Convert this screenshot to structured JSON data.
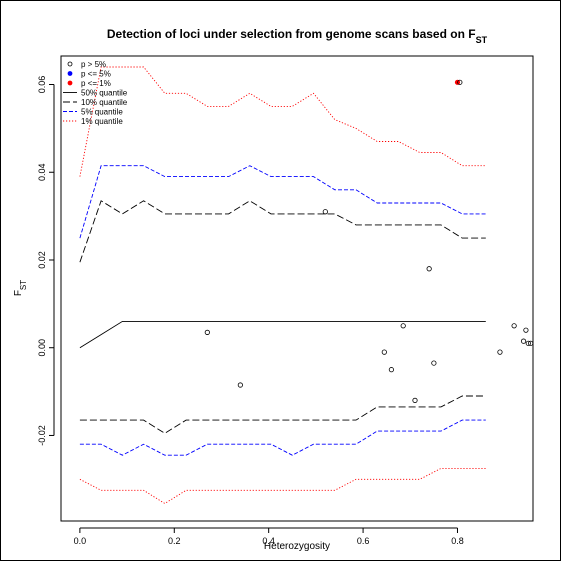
{
  "chart_data": {
    "type": "line",
    "title": "Detection of loci under selection from genome scans based on F",
    "title_sub": "ST",
    "xlabel": "Heterozygosity",
    "ylabel": "F",
    "ylabel_sub": "ST",
    "xlim": [
      -0.04,
      0.96
    ],
    "ylim": [
      -0.0395,
      0.0665
    ],
    "x_ticks": [
      0.0,
      0.2,
      0.4,
      0.6,
      0.8
    ],
    "x_tick_labels": [
      "0.0",
      "0.2",
      "0.4",
      "0.6",
      "0.8"
    ],
    "y_ticks": [
      -0.02,
      0.0,
      0.02,
      0.04,
      0.06
    ],
    "y_tick_labels": [
      "-0.02",
      "0.00",
      "0.02",
      "0.04",
      "0.06"
    ],
    "grid": false,
    "legend_position": "top-left",
    "legend": [
      {
        "label": "p > 5%",
        "kind": "point",
        "color": "#000000",
        "filled": false
      },
      {
        "label": "p <= 5%",
        "kind": "point",
        "color": "#0000ff",
        "filled": true
      },
      {
        "label": "p <= 1%",
        "kind": "point",
        "color": "#ff0000",
        "filled": true
      },
      {
        "label": "50% quantile",
        "kind": "line",
        "color": "#000000",
        "dash": "solid"
      },
      {
        "label": "10% quantile",
        "kind": "line",
        "color": "#000000",
        "dash": "longdash"
      },
      {
        "label": "5% quantile",
        "kind": "line",
        "color": "#0000ff",
        "dash": "dashed"
      },
      {
        "label": "1% quantile",
        "kind": "line",
        "color": "#ff0000",
        "dash": "dotted"
      }
    ],
    "series": [
      {
        "name": "1% quantile",
        "color": "#ff0000",
        "dash": "dotted",
        "x": [
          0.0,
          0.045,
          0.09,
          0.135,
          0.18,
          0.225,
          0.27,
          0.315,
          0.36,
          0.405,
          0.45,
          0.495,
          0.54,
          0.585,
          0.63,
          0.675,
          0.72,
          0.765,
          0.81,
          0.86
        ],
        "y": [
          0.039,
          0.064,
          0.064,
          0.064,
          0.058,
          0.058,
          0.055,
          0.055,
          0.058,
          0.055,
          0.055,
          0.058,
          0.052,
          0.05,
          0.047,
          0.047,
          0.0445,
          0.0445,
          0.0415,
          0.0415
        ]
      },
      {
        "name": "5% quantile",
        "color": "#0000ff",
        "dash": "dashed",
        "x": [
          0.0,
          0.045,
          0.09,
          0.135,
          0.18,
          0.225,
          0.27,
          0.315,
          0.36,
          0.405,
          0.45,
          0.495,
          0.54,
          0.585,
          0.63,
          0.675,
          0.72,
          0.765,
          0.81,
          0.86
        ],
        "y": [
          0.025,
          0.0415,
          0.0415,
          0.0415,
          0.039,
          0.039,
          0.039,
          0.039,
          0.0415,
          0.039,
          0.039,
          0.039,
          0.036,
          0.036,
          0.033,
          0.033,
          0.033,
          0.033,
          0.0305,
          0.0305
        ]
      },
      {
        "name": "10% quantile",
        "color": "#000000",
        "dash": "longdash",
        "x": [
          0.0,
          0.045,
          0.09,
          0.135,
          0.18,
          0.225,
          0.27,
          0.315,
          0.36,
          0.405,
          0.45,
          0.495,
          0.54,
          0.585,
          0.63,
          0.675,
          0.72,
          0.765,
          0.81,
          0.86
        ],
        "y": [
          0.0195,
          0.0335,
          0.0305,
          0.0335,
          0.0305,
          0.0305,
          0.0305,
          0.0305,
          0.0335,
          0.0305,
          0.0305,
          0.0305,
          0.0305,
          0.028,
          0.028,
          0.028,
          0.028,
          0.028,
          0.025,
          0.025
        ]
      },
      {
        "name": "50% quantile",
        "color": "#000000",
        "dash": "solid",
        "x": [
          0.0,
          0.045,
          0.09,
          0.135,
          0.18,
          0.225,
          0.27,
          0.315,
          0.36,
          0.405,
          0.45,
          0.495,
          0.54,
          0.585,
          0.63,
          0.675,
          0.72,
          0.765,
          0.81,
          0.86
        ],
        "y": [
          0.0,
          0.003,
          0.006,
          0.006,
          0.006,
          0.006,
          0.006,
          0.006,
          0.006,
          0.006,
          0.006,
          0.006,
          0.006,
          0.006,
          0.006,
          0.006,
          0.006,
          0.006,
          0.006,
          0.006
        ]
      },
      {
        "name": "10% quantile lower",
        "color": "#000000",
        "dash": "longdash",
        "x": [
          0.0,
          0.045,
          0.09,
          0.135,
          0.18,
          0.225,
          0.27,
          0.315,
          0.36,
          0.405,
          0.45,
          0.495,
          0.54,
          0.585,
          0.63,
          0.675,
          0.72,
          0.765,
          0.81,
          0.86
        ],
        "y": [
          -0.0165,
          -0.0165,
          -0.0165,
          -0.0165,
          -0.0195,
          -0.0165,
          -0.0165,
          -0.0165,
          -0.0165,
          -0.0165,
          -0.0165,
          -0.0165,
          -0.0165,
          -0.0165,
          -0.0135,
          -0.0135,
          -0.0135,
          -0.0135,
          -0.011,
          -0.011
        ]
      },
      {
        "name": "5% quantile lower",
        "color": "#0000ff",
        "dash": "dashed",
        "x": [
          0.0,
          0.045,
          0.09,
          0.135,
          0.18,
          0.225,
          0.27,
          0.315,
          0.36,
          0.405,
          0.45,
          0.495,
          0.54,
          0.585,
          0.63,
          0.675,
          0.72,
          0.765,
          0.81,
          0.86
        ],
        "y": [
          -0.022,
          -0.022,
          -0.0245,
          -0.022,
          -0.0245,
          -0.0245,
          -0.022,
          -0.022,
          -0.022,
          -0.022,
          -0.0245,
          -0.022,
          -0.022,
          -0.022,
          -0.019,
          -0.019,
          -0.019,
          -0.019,
          -0.0165,
          -0.0165
        ]
      },
      {
        "name": "1% quantile lower",
        "color": "#ff0000",
        "dash": "dotted",
        "x": [
          0.0,
          0.045,
          0.09,
          0.135,
          0.18,
          0.225,
          0.27,
          0.315,
          0.36,
          0.405,
          0.45,
          0.495,
          0.54,
          0.585,
          0.63,
          0.675,
          0.72,
          0.765,
          0.81,
          0.86
        ],
        "y": [
          -0.03,
          -0.0325,
          -0.0325,
          -0.0325,
          -0.0355,
          -0.0325,
          -0.0325,
          -0.0325,
          -0.0325,
          -0.0325,
          -0.0325,
          -0.0325,
          -0.0325,
          -0.03,
          -0.03,
          -0.03,
          -0.03,
          -0.0275,
          -0.0275,
          -0.0275
        ]
      }
    ],
    "points": [
      {
        "x": 0.27,
        "y": 0.0035,
        "color": "#000000",
        "filled": false
      },
      {
        "x": 0.34,
        "y": -0.0085,
        "color": "#000000",
        "filled": false
      },
      {
        "x": 0.52,
        "y": 0.031,
        "color": "#000000",
        "filled": false
      },
      {
        "x": 0.645,
        "y": -0.001,
        "color": "#000000",
        "filled": false
      },
      {
        "x": 0.66,
        "y": -0.005,
        "color": "#000000",
        "filled": false
      },
      {
        "x": 0.685,
        "y": 0.005,
        "color": "#000000",
        "filled": false
      },
      {
        "x": 0.71,
        "y": -0.012,
        "color": "#000000",
        "filled": false
      },
      {
        "x": 0.74,
        "y": 0.018,
        "color": "#000000",
        "filled": false
      },
      {
        "x": 0.75,
        "y": -0.0035,
        "color": "#000000",
        "filled": false
      },
      {
        "x": 0.89,
        "y": -0.001,
        "color": "#000000",
        "filled": false
      },
      {
        "x": 0.92,
        "y": 0.005,
        "color": "#000000",
        "filled": false
      },
      {
        "x": 0.94,
        "y": 0.0015,
        "color": "#000000",
        "filled": false
      },
      {
        "x": 0.945,
        "y": 0.004,
        "color": "#000000",
        "filled": false
      },
      {
        "x": 0.95,
        "y": 0.001,
        "color": "#000000",
        "filled": false
      },
      {
        "x": 0.955,
        "y": 0.001,
        "color": "#000000",
        "filled": false
      },
      {
        "x": 0.8,
        "y": 0.0605,
        "color": "#ff0000",
        "filled": true
      },
      {
        "x": 0.805,
        "y": 0.0605,
        "color": "#000000",
        "filled": false
      }
    ]
  }
}
